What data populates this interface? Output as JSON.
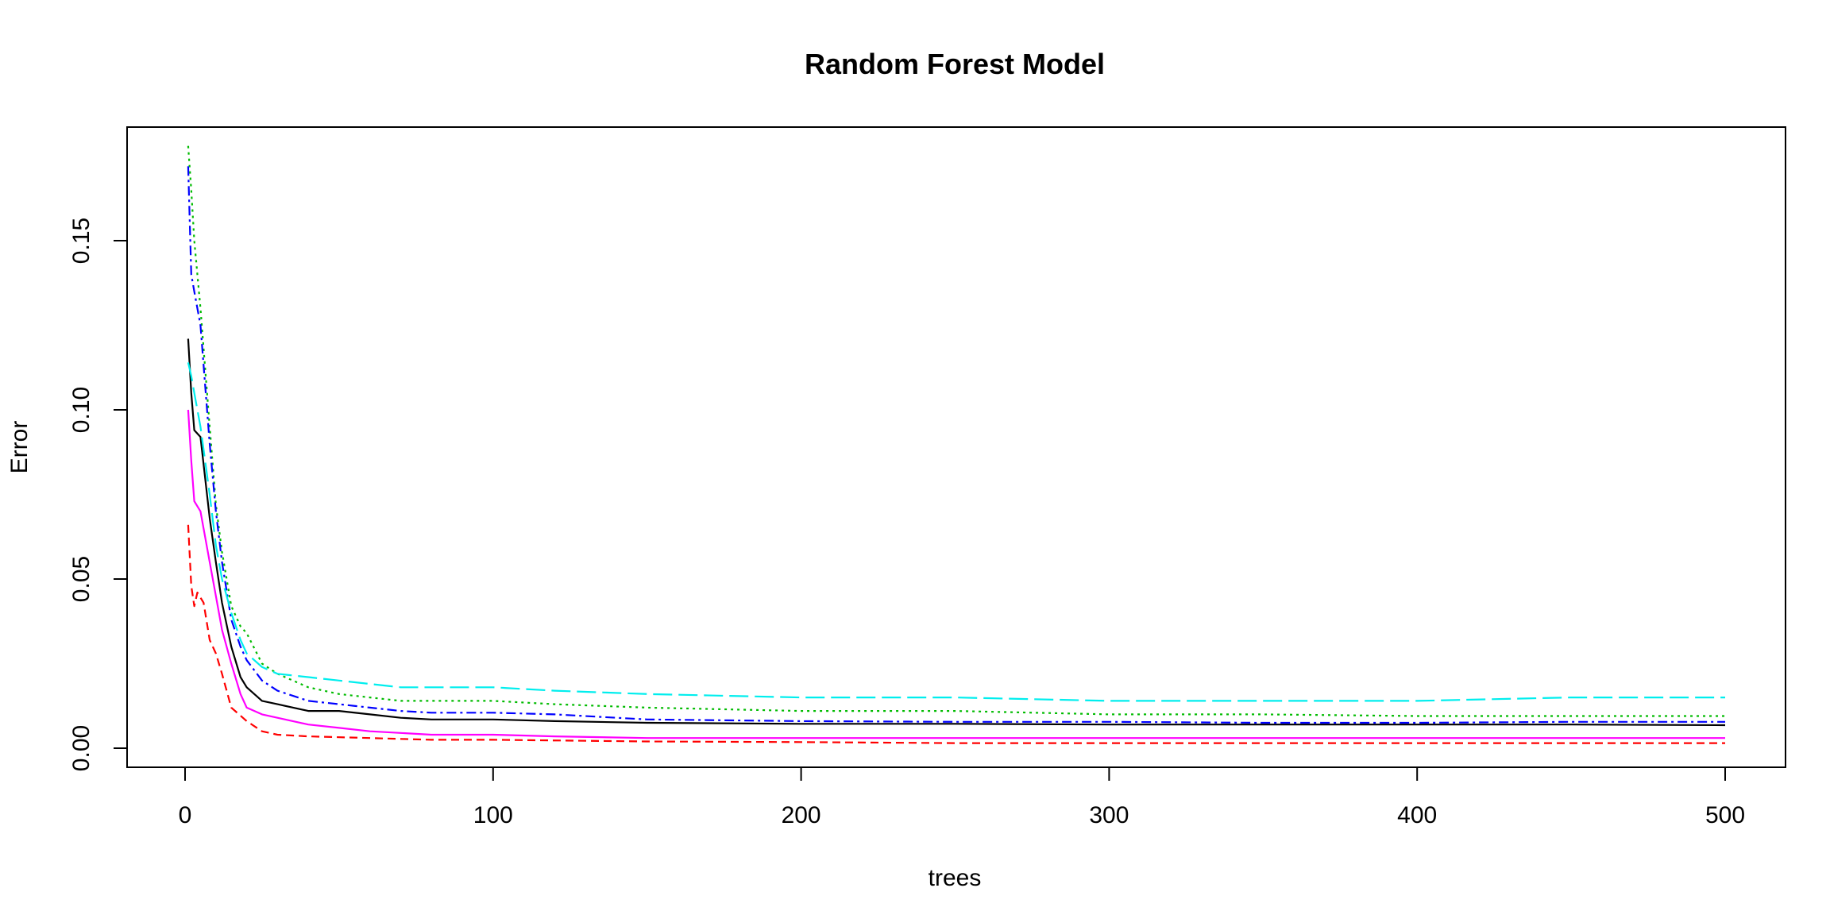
{
  "chart_data": {
    "type": "line",
    "title": "Random Forest Model",
    "xlabel": "trees",
    "ylabel": "Error",
    "xlim": [
      1,
      500
    ],
    "ylim": [
      0,
      0.175
    ],
    "x_ticks": [
      0,
      100,
      200,
      300,
      400,
      500
    ],
    "y_ticks": [
      0.0,
      0.05,
      0.1,
      0.15
    ],
    "y_tick_labels": [
      "0.00",
      "0.05",
      "0.10",
      "0.15"
    ],
    "grid": false,
    "series": [
      {
        "color": "#000000",
        "dash": "",
        "points": [
          [
            1,
            0.121
          ],
          [
            2,
            0.105
          ],
          [
            3,
            0.094
          ],
          [
            5,
            0.092
          ],
          [
            8,
            0.068
          ],
          [
            10,
            0.055
          ],
          [
            12,
            0.043
          ],
          [
            15,
            0.03
          ],
          [
            18,
            0.021
          ],
          [
            20,
            0.018
          ],
          [
            25,
            0.014
          ],
          [
            30,
            0.013
          ],
          [
            40,
            0.011
          ],
          [
            50,
            0.011
          ],
          [
            60,
            0.01
          ],
          [
            70,
            0.009
          ],
          [
            80,
            0.0085
          ],
          [
            100,
            0.0085
          ],
          [
            120,
            0.008
          ],
          [
            150,
            0.0075
          ],
          [
            200,
            0.0072
          ],
          [
            250,
            0.0072
          ],
          [
            300,
            0.007
          ],
          [
            350,
            0.007
          ],
          [
            400,
            0.007
          ],
          [
            450,
            0.007
          ],
          [
            500,
            0.0068
          ]
        ]
      },
      {
        "color": "#ff0000",
        "dash": "10,6",
        "points": [
          [
            1,
            0.066
          ],
          [
            2,
            0.048
          ],
          [
            3,
            0.042
          ],
          [
            4,
            0.046
          ],
          [
            6,
            0.043
          ],
          [
            8,
            0.032
          ],
          [
            10,
            0.028
          ],
          [
            12,
            0.022
          ],
          [
            15,
            0.012
          ],
          [
            20,
            0.008
          ],
          [
            25,
            0.005
          ],
          [
            30,
            0.004
          ],
          [
            40,
            0.0035
          ],
          [
            60,
            0.003
          ],
          [
            80,
            0.0025
          ],
          [
            100,
            0.0025
          ],
          [
            150,
            0.002
          ],
          [
            200,
            0.0018
          ],
          [
            250,
            0.0015
          ],
          [
            300,
            0.0015
          ],
          [
            350,
            0.0015
          ],
          [
            400,
            0.0015
          ],
          [
            450,
            0.0015
          ],
          [
            500,
            0.0015
          ]
        ]
      },
      {
        "color": "#00bb00",
        "dash": "3,5",
        "points": [
          [
            1,
            0.178
          ],
          [
            2,
            0.165
          ],
          [
            3,
            0.15
          ],
          [
            5,
            0.13
          ],
          [
            8,
            0.095
          ],
          [
            10,
            0.072
          ],
          [
            12,
            0.058
          ],
          [
            15,
            0.042
          ],
          [
            18,
            0.036
          ],
          [
            20,
            0.034
          ],
          [
            25,
            0.025
          ],
          [
            30,
            0.022
          ],
          [
            40,
            0.018
          ],
          [
            50,
            0.016
          ],
          [
            60,
            0.015
          ],
          [
            70,
            0.014
          ],
          [
            80,
            0.014
          ],
          [
            100,
            0.014
          ],
          [
            120,
            0.013
          ],
          [
            150,
            0.012
          ],
          [
            200,
            0.011
          ],
          [
            250,
            0.011
          ],
          [
            300,
            0.01
          ],
          [
            350,
            0.01
          ],
          [
            400,
            0.0095
          ],
          [
            450,
            0.0095
          ],
          [
            500,
            0.0095
          ]
        ]
      },
      {
        "color": "#0000ff",
        "dash": "12,5,3,5",
        "points": [
          [
            1,
            0.172
          ],
          [
            2,
            0.14
          ],
          [
            3,
            0.135
          ],
          [
            5,
            0.125
          ],
          [
            8,
            0.09
          ],
          [
            10,
            0.07
          ],
          [
            12,
            0.055
          ],
          [
            15,
            0.038
          ],
          [
            18,
            0.03
          ],
          [
            20,
            0.026
          ],
          [
            25,
            0.02
          ],
          [
            30,
            0.017
          ],
          [
            40,
            0.014
          ],
          [
            50,
            0.013
          ],
          [
            60,
            0.012
          ],
          [
            70,
            0.011
          ],
          [
            80,
            0.0105
          ],
          [
            100,
            0.0105
          ],
          [
            120,
            0.01
          ],
          [
            150,
            0.0085
          ],
          [
            200,
            0.008
          ],
          [
            250,
            0.0078
          ],
          [
            300,
            0.0078
          ],
          [
            350,
            0.0075
          ],
          [
            400,
            0.0075
          ],
          [
            450,
            0.0078
          ],
          [
            500,
            0.0078
          ]
        ]
      },
      {
        "color": "#00eeee",
        "dash": "24,8",
        "points": [
          [
            1,
            0.114
          ],
          [
            2,
            0.11
          ],
          [
            3,
            0.105
          ],
          [
            5,
            0.095
          ],
          [
            8,
            0.075
          ],
          [
            10,
            0.06
          ],
          [
            12,
            0.05
          ],
          [
            15,
            0.04
          ],
          [
            18,
            0.032
          ],
          [
            20,
            0.028
          ],
          [
            25,
            0.024
          ],
          [
            30,
            0.022
          ],
          [
            40,
            0.021
          ],
          [
            50,
            0.02
          ],
          [
            60,
            0.019
          ],
          [
            70,
            0.018
          ],
          [
            80,
            0.018
          ],
          [
            100,
            0.018
          ],
          [
            120,
            0.017
          ],
          [
            150,
            0.016
          ],
          [
            200,
            0.015
          ],
          [
            250,
            0.015
          ],
          [
            300,
            0.014
          ],
          [
            350,
            0.014
          ],
          [
            400,
            0.014
          ],
          [
            450,
            0.015
          ],
          [
            500,
            0.015
          ]
        ]
      },
      {
        "color": "#ff00ff",
        "dash": "",
        "points": [
          [
            1,
            0.1
          ],
          [
            2,
            0.085
          ],
          [
            3,
            0.073
          ],
          [
            5,
            0.07
          ],
          [
            8,
            0.055
          ],
          [
            10,
            0.045
          ],
          [
            12,
            0.035
          ],
          [
            15,
            0.025
          ],
          [
            18,
            0.016
          ],
          [
            20,
            0.012
          ],
          [
            25,
            0.01
          ],
          [
            30,
            0.009
          ],
          [
            40,
            0.007
          ],
          [
            50,
            0.006
          ],
          [
            60,
            0.005
          ],
          [
            70,
            0.0045
          ],
          [
            80,
            0.004
          ],
          [
            100,
            0.004
          ],
          [
            120,
            0.0035
          ],
          [
            150,
            0.003
          ],
          [
            200,
            0.003
          ],
          [
            250,
            0.003
          ],
          [
            300,
            0.003
          ],
          [
            350,
            0.003
          ],
          [
            400,
            0.003
          ],
          [
            450,
            0.003
          ],
          [
            500,
            0.003
          ]
        ]
      }
    ]
  }
}
